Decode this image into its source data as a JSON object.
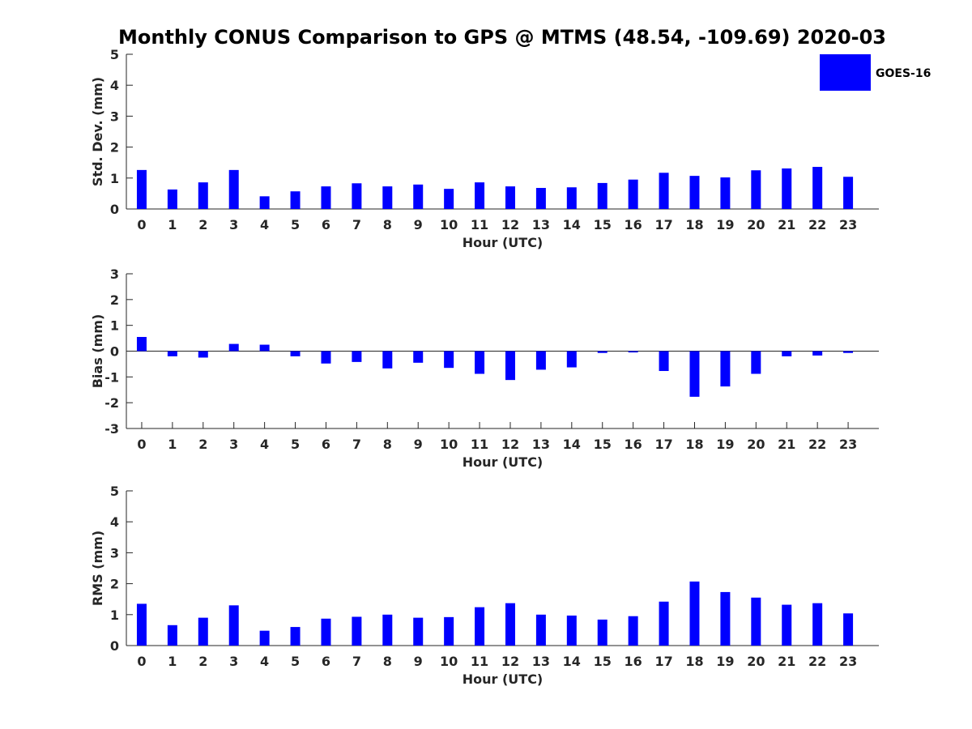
{
  "chart_data": {
    "type": "bar",
    "title": "Monthly CONUS Comparison to GPS @ MTMS (48.54, -109.69) 2020-03",
    "categories": [
      "0",
      "1",
      "2",
      "3",
      "4",
      "5",
      "6",
      "7",
      "8",
      "9",
      "10",
      "11",
      "12",
      "13",
      "14",
      "15",
      "16",
      "17",
      "18",
      "19",
      "20",
      "21",
      "22",
      "23"
    ],
    "legend": {
      "entries": [
        "GOES-16"
      ],
      "placement": "top-right"
    },
    "bar_color": "#0000ff",
    "panels": [
      {
        "id": "std",
        "ylabel": "Std. Dev. (mm)",
        "xlabel": "Hour (UTC)",
        "ylim": [
          0,
          5
        ],
        "yticks": [
          0,
          1,
          2,
          3,
          4,
          5
        ],
        "series": [
          {
            "name": "GOES-16",
            "values": [
              1.26,
              0.63,
              0.86,
              1.26,
              0.41,
              0.57,
              0.73,
              0.83,
              0.73,
              0.79,
              0.65,
              0.86,
              0.73,
              0.68,
              0.7,
              0.84,
              0.95,
              1.17,
              1.07,
              1.02,
              1.25,
              1.31,
              1.36,
              1.04
            ]
          }
        ]
      },
      {
        "id": "bias",
        "ylabel": "Bias (mm)",
        "xlabel": "Hour (UTC)",
        "ylim": [
          -3,
          3
        ],
        "yticks": [
          -3,
          -2,
          -1,
          0,
          1,
          2,
          3
        ],
        "zero_line": true,
        "series": [
          {
            "name": "GOES-16",
            "values": [
              0.55,
              -0.2,
              -0.25,
              0.28,
              0.25,
              -0.2,
              -0.48,
              -0.42,
              -0.67,
              -0.45,
              -0.65,
              -0.88,
              -1.12,
              -0.72,
              -0.63,
              -0.07,
              -0.05,
              -0.77,
              -1.77,
              -1.37,
              -0.88,
              -0.2,
              -0.17,
              -0.07
            ]
          }
        ]
      },
      {
        "id": "rms",
        "ylabel": "RMS (mm)",
        "xlabel": "Hour (UTC)",
        "ylim": [
          0,
          5
        ],
        "yticks": [
          0,
          1,
          2,
          3,
          4,
          5
        ],
        "series": [
          {
            "name": "GOES-16",
            "values": [
              1.35,
              0.66,
              0.9,
              1.3,
              0.48,
              0.6,
              0.87,
              0.93,
              1.0,
              0.9,
              0.92,
              1.24,
              1.37,
              1.0,
              0.97,
              0.84,
              0.95,
              1.42,
              2.07,
              1.73,
              1.55,
              1.32,
              1.37,
              1.04
            ]
          }
        ]
      }
    ]
  }
}
